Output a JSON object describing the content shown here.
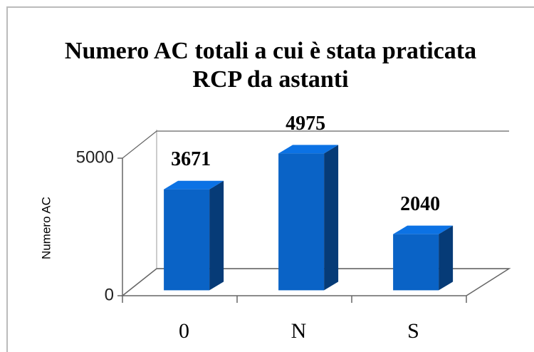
{
  "chart_data": {
    "type": "bar",
    "title": "Numero AC totali a cui è stata praticata RCP da astanti",
    "y_label": "Numero AC",
    "categories": [
      "0",
      "N",
      "S"
    ],
    "values": [
      3671,
      4975,
      2040
    ],
    "color": "#0a63c6",
    "ylim": [
      0,
      5000
    ],
    "yticks": [
      0,
      5000
    ],
    "grid": true
  }
}
